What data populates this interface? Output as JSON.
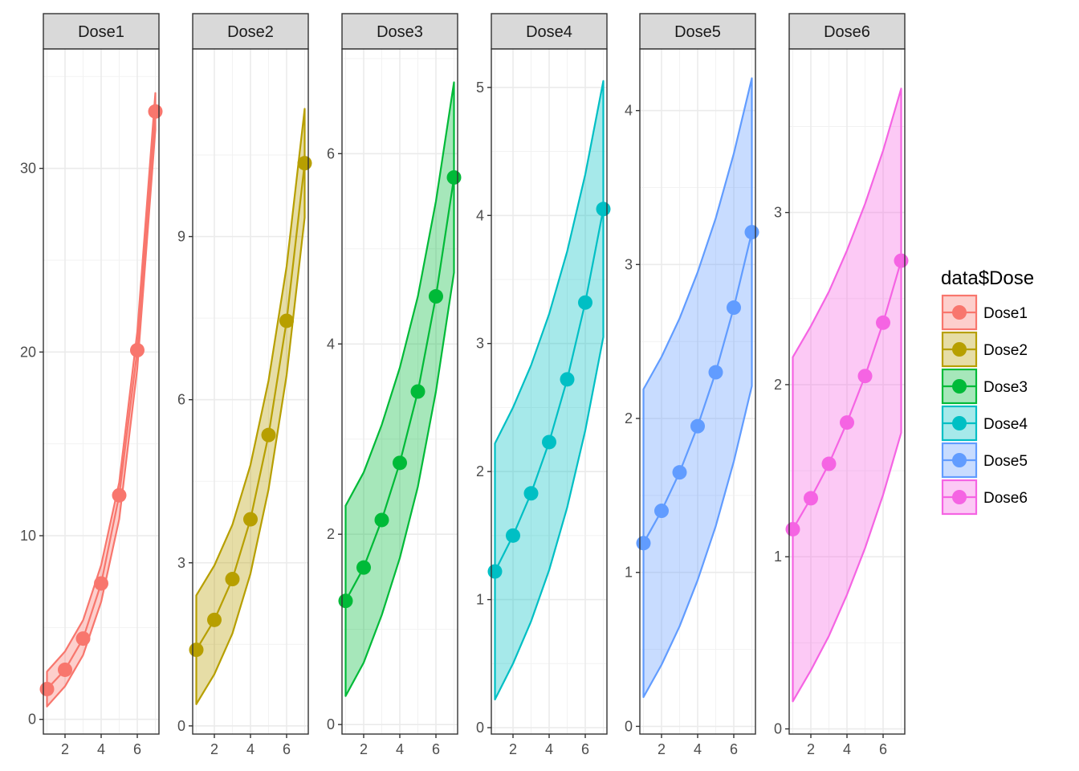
{
  "chart_data": {
    "type": "line",
    "facet_by": "data$Dose",
    "x": [
      1,
      2,
      3,
      4,
      5,
      6,
      7
    ],
    "x_ticks": [
      2,
      4,
      6
    ],
    "xlim": [
      0.8,
      7.2
    ],
    "grid": true,
    "legend": {
      "title": "data$Dose",
      "placement": "right",
      "entries": [
        "Dose1",
        "Dose2",
        "Dose3",
        "Dose4",
        "Dose5",
        "Dose6"
      ]
    },
    "panels": [
      {
        "label": "Dose1",
        "color": "#F8766D",
        "ylim": [
          -0.8,
          36.5
        ],
        "y_ticks": [
          0,
          10,
          20,
          30
        ],
        "values": [
          1.65,
          2.7,
          4.4,
          7.4,
          12.2,
          20.1,
          33.1
        ],
        "lower": [
          0.7,
          1.8,
          3.5,
          6.4,
          10.9,
          19.1,
          32.1
        ],
        "upper": [
          2.6,
          3.7,
          5.4,
          8.4,
          12.9,
          21.1,
          34.1
        ]
      },
      {
        "label": "Dose2",
        "color": "#B79F00",
        "ylim": [
          -0.15,
          12.45
        ],
        "y_ticks": [
          0,
          3,
          6,
          9
        ],
        "values": [
          1.4,
          1.95,
          2.7,
          3.8,
          5.35,
          7.45,
          10.35
        ],
        "lower": [
          0.4,
          0.95,
          1.7,
          2.8,
          4.35,
          6.45,
          9.35
        ],
        "upper": [
          2.4,
          2.95,
          3.7,
          4.8,
          6.35,
          8.45,
          11.35
        ]
      },
      {
        "label": "Dose3",
        "color": "#00BA38",
        "ylim": [
          -0.1,
          7.1
        ],
        "y_ticks": [
          0,
          2,
          4,
          6
        ],
        "values": [
          1.3,
          1.65,
          2.15,
          2.75,
          3.5,
          4.5,
          5.75
        ],
        "lower": [
          0.3,
          0.65,
          1.15,
          1.75,
          2.5,
          3.5,
          4.75
        ],
        "upper": [
          2.3,
          2.65,
          3.15,
          3.75,
          4.5,
          5.5,
          6.75
        ]
      },
      {
        "label": "Dose4",
        "color": "#00BFC4",
        "ylim": [
          -0.05,
          5.3
        ],
        "y_ticks": [
          0,
          1,
          2,
          3,
          4,
          5
        ],
        "values": [
          1.22,
          1.5,
          1.83,
          2.23,
          2.72,
          3.32,
          4.05
        ],
        "lower": [
          0.22,
          0.5,
          0.83,
          1.23,
          1.72,
          2.32,
          3.05
        ],
        "upper": [
          2.22,
          2.5,
          2.83,
          3.23,
          3.72,
          4.32,
          5.05
        ]
      },
      {
        "label": "Dose5",
        "color": "#619CFF",
        "ylim": [
          -0.05,
          4.4
        ],
        "y_ticks": [
          0,
          1,
          2,
          3,
          4
        ],
        "values": [
          1.19,
          1.4,
          1.65,
          1.95,
          2.3,
          2.72,
          3.21
        ],
        "lower": [
          0.19,
          0.4,
          0.65,
          0.95,
          1.3,
          1.72,
          2.21
        ],
        "upper": [
          2.19,
          2.4,
          2.65,
          2.95,
          3.3,
          3.72,
          4.21
        ]
      },
      {
        "label": "Dose6",
        "color": "#F564E3",
        "ylim": [
          -0.03,
          3.95
        ],
        "y_ticks": [
          0,
          1,
          2,
          3
        ],
        "values": [
          1.16,
          1.34,
          1.54,
          1.78,
          2.05,
          2.36,
          2.72
        ],
        "lower": [
          0.16,
          0.34,
          0.54,
          0.78,
          1.05,
          1.36,
          1.72
        ],
        "upper": [
          2.16,
          2.34,
          2.54,
          2.78,
          3.05,
          3.36,
          3.72
        ]
      }
    ]
  }
}
